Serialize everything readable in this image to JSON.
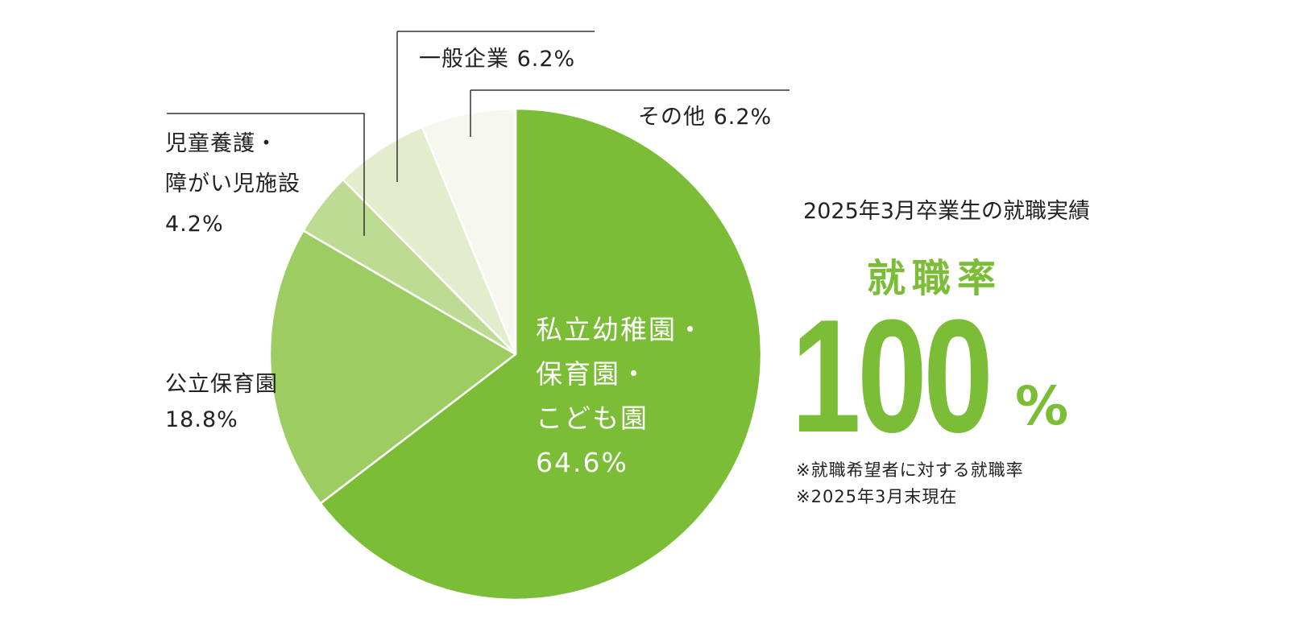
{
  "chart_data": {
    "type": "pie",
    "start_angle_deg": 0,
    "direction": "clockwise",
    "slices": [
      {
        "name_lines": [
          "私立幼稚園・",
          "保育園・",
          "こども園"
        ],
        "value_text": "64.6%",
        "value": 64.6,
        "color": "#7bbd37"
      },
      {
        "name_lines": [
          "公立保育園"
        ],
        "value_text": "18.8%",
        "value": 18.8,
        "color": "#9dcd62"
      },
      {
        "name_lines": [
          "児童養護・",
          "障がい児施設"
        ],
        "value_text": "4.2%",
        "value": 4.2,
        "color": "#bddb93"
      },
      {
        "name_lines": [
          "一般企業"
        ],
        "value_text": "6.2%",
        "value": 6.2,
        "color": "#e2edcd"
      },
      {
        "name_lines": [
          "その他"
        ],
        "value_text": "6.2%",
        "value": 6.2,
        "color": "#f6f8ef"
      }
    ]
  },
  "stats": {
    "heading": "2025年3月卒業生の就職実績",
    "rate_label": "就職率",
    "rate_value": "100",
    "rate_unit": "%",
    "notes": [
      "※就職希望者に対する就職率",
      "※2025年3月末現在"
    ],
    "accent_color": "#7bbd37"
  }
}
